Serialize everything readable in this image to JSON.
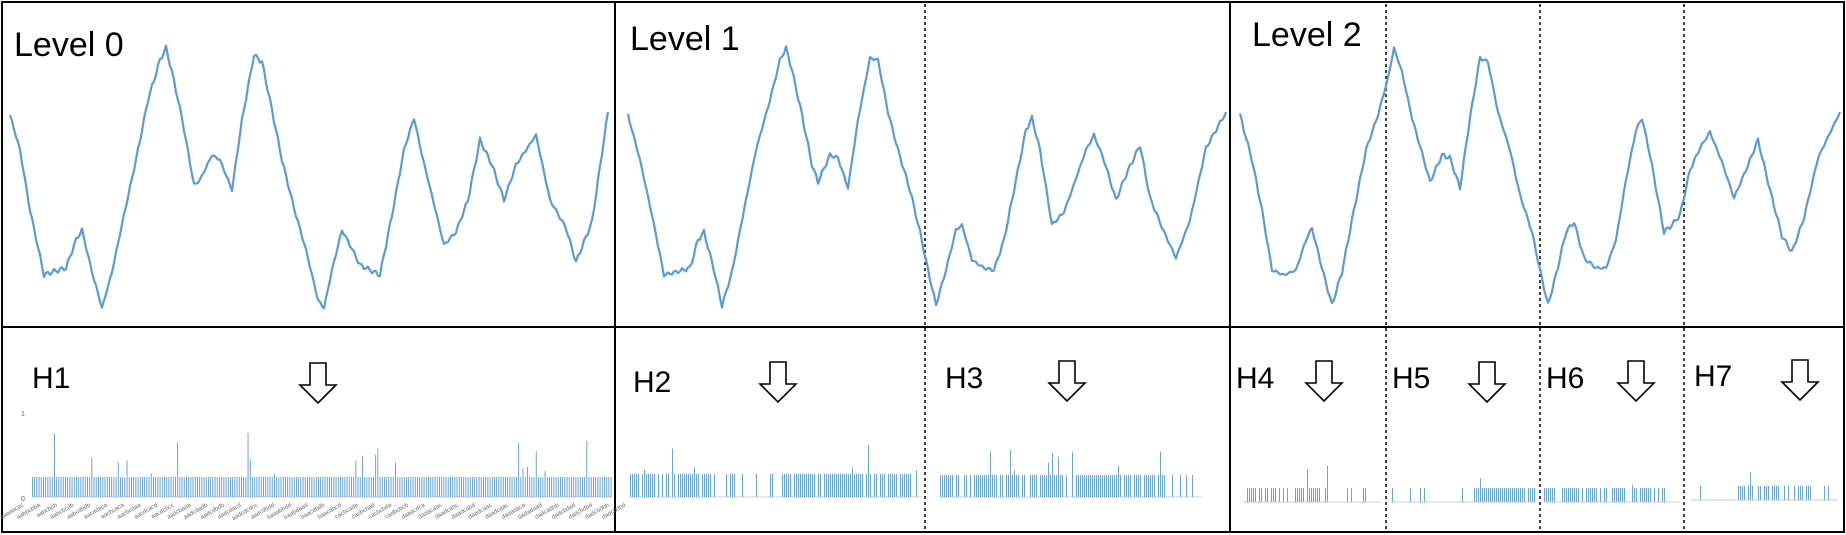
{
  "levels": [
    {
      "label": "Level 0"
    },
    {
      "label": "Level 1"
    },
    {
      "label": "Level 2"
    }
  ],
  "histograms": [
    {
      "label": "H1",
      "ytick_top": "1",
      "ytick_bottom": "0",
      "categories": [
        "aaaaacac",
        "aabbcbba",
        "aabcbcb",
        "aabcbcdb",
        "aabcdbdb",
        "aacadaca",
        "aacbcaca",
        "aacbcdaa",
        "aacdcacd",
        "aacdcbcc",
        "aadcbada",
        "aadcdadb",
        "aadcdbdb",
        "aadcdacd",
        "aadcdcdcc",
        "aadcdbdd",
        "baaabbdd",
        "baabdaad",
        "baacdbdb",
        "baacdbcd",
        "cacbcada",
        "cacbcbad",
        "cacbcbda",
        "cadbcbcb",
        "daaacdca",
        "dadacaac",
        "daadcabc",
        "daadcabd",
        "daadcaac",
        "daadcaac",
        "dadadaca",
        "dadadaad",
        "dadcadbb",
        "dadcbdad",
        "dadcbdbd",
        "dadcbdbb",
        "dadcbdbd"
      ]
    },
    {
      "label": "H2"
    },
    {
      "label": "H3"
    },
    {
      "label": "H4"
    },
    {
      "label": "H5"
    },
    {
      "label": "H6"
    },
    {
      "label": "H7"
    }
  ],
  "colors": {
    "series": "#5b9bd5",
    "border": "#000000",
    "divider": "#000000"
  },
  "icons": [
    "down-arrow-icon"
  ]
}
